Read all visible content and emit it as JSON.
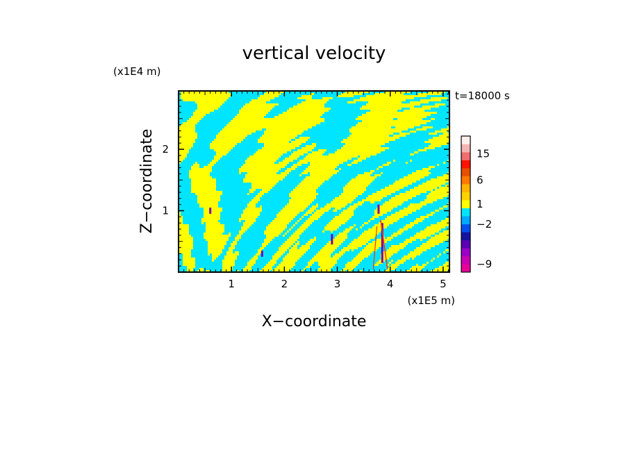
{
  "chart_data": {
    "type": "heatmap",
    "title": "vertical velocity",
    "xlabel": "X−coordinate",
    "ylabel": "Z−coordinate",
    "x_unit": "(x1E5 m)",
    "y_unit": "(x1E4 m)",
    "time_label": "t=18000 s",
    "xlim": [
      0,
      5.12
    ],
    "ylim": [
      0,
      2.95
    ],
    "x_ticks": [
      1,
      2,
      3,
      4,
      5
    ],
    "y_ticks": [
      1,
      2
    ],
    "x_tick_labels": [
      "1",
      "2",
      "3",
      "4",
      "5"
    ],
    "y_tick_labels": [
      "1",
      "2"
    ],
    "grid": false,
    "field_colors": {
      "positive_small": "#ffff00",
      "negative_small": "#00e5ff",
      "strong_negative": "#7a00b0",
      "strong_positive": "#ff3000"
    },
    "colorbar": {
      "levels_bottom_to_top": [
        {
          "color": "#e6009a"
        },
        {
          "color": "#c800b4"
        },
        {
          "color": "#9b00c8"
        },
        {
          "color": "#5a00b4"
        },
        {
          "color": "#1414a0"
        },
        {
          "color": "#0050f0"
        },
        {
          "color": "#00aaff"
        },
        {
          "color": "#00e5ff"
        },
        {
          "color": "#ffff00"
        },
        {
          "color": "#ffd200"
        },
        {
          "color": "#ffb400"
        },
        {
          "color": "#ff7800"
        },
        {
          "color": "#e65000"
        },
        {
          "color": "#ff1400"
        },
        {
          "color": "#f06e6e"
        },
        {
          "color": "#f5b4b4"
        },
        {
          "color": "#fff0ec"
        }
      ],
      "tick_labels": [
        {
          "text": "−9",
          "level": 1
        },
        {
          "text": "−2",
          "level": 6
        },
        {
          "text": "1",
          "level": 8.5
        },
        {
          "text": "6",
          "level": 11.5
        },
        {
          "text": "15",
          "level": 14.8
        }
      ]
    }
  }
}
